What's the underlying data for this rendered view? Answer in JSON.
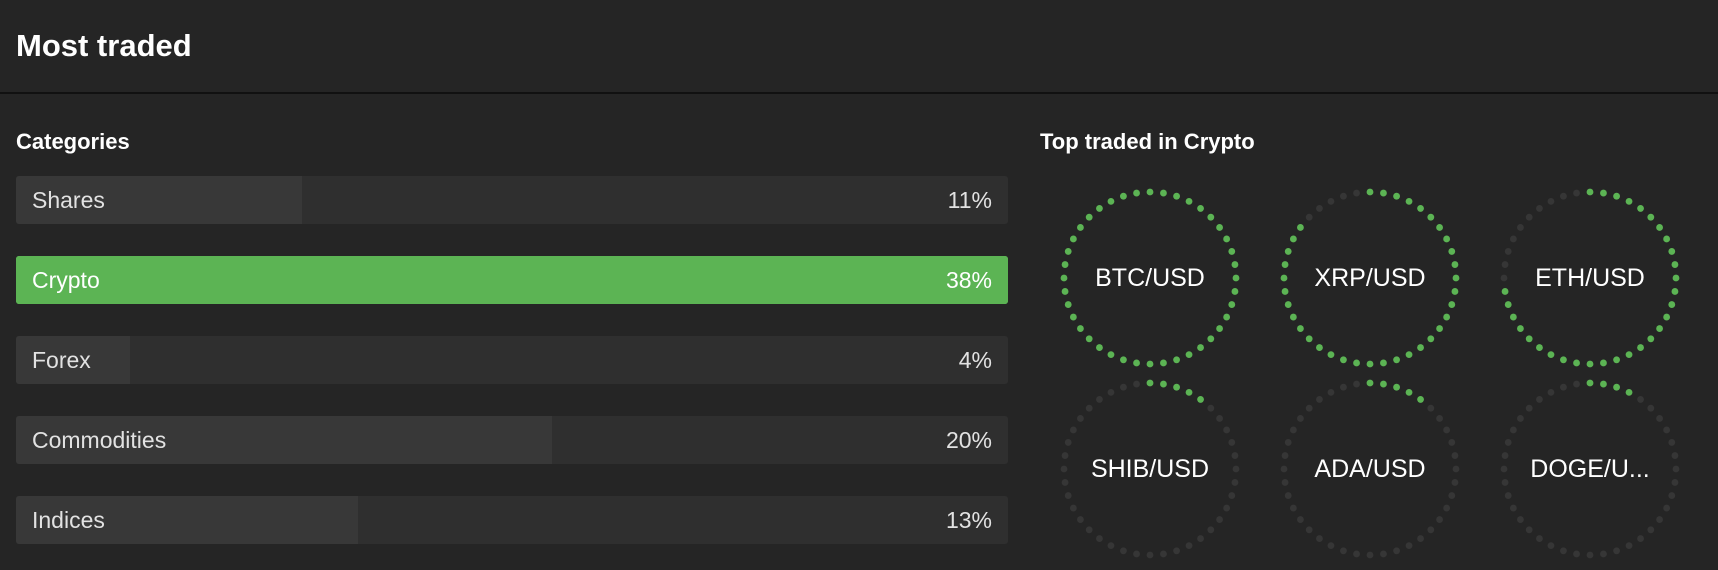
{
  "header": {
    "title": "Most traded"
  },
  "categories": {
    "title": "Categories",
    "items": [
      {
        "label": "Shares",
        "percent_text": "11%",
        "share": 0.288,
        "active": false
      },
      {
        "label": "Crypto",
        "percent_text": "38%",
        "share": 1.0,
        "active": true
      },
      {
        "label": "Forex",
        "percent_text": "4%",
        "share": 0.115,
        "active": false
      },
      {
        "label": "Commodities",
        "percent_text": "20%",
        "share": 0.54,
        "active": false
      },
      {
        "label": "Indices",
        "percent_text": "13%",
        "share": 0.345,
        "active": false
      }
    ]
  },
  "top_traded": {
    "title": "Top traded in Crypto",
    "accent_color": "#5cb454",
    "track_color": "#363636",
    "coins": [
      {
        "label": "BTC/USD",
        "fill": 1.0
      },
      {
        "label": "XRP/USD",
        "fill": 0.88
      },
      {
        "label": "ETH/USD",
        "fill": 0.75
      },
      {
        "label": "SHIB/USD",
        "fill": 0.13
      },
      {
        "label": "ADA/USD",
        "fill": 0.13
      },
      {
        "label": "DOGE/U...",
        "fill": 0.1
      }
    ]
  }
}
